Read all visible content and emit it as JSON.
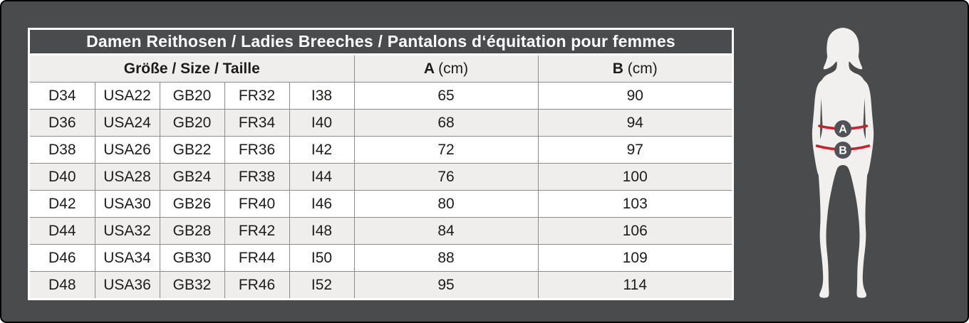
{
  "colors": {
    "page_background": "#4a4b4d",
    "row_alt": "#efeeec",
    "cell_border": "#8c8c8c",
    "accent_red": "#cb2229",
    "silhouette_fill": "#f1f0ee",
    "marker_circle": "#515257",
    "text_dark": "#1c1c1a"
  },
  "chart_data": {
    "type": "table",
    "title": "Damen Reithosen / Ladies Breeches / Pantalons d‘équitation pour femmes",
    "group_header": "Größe / Size / Taille",
    "measure_headers": [
      {
        "label": "A",
        "unit": "(cm)"
      },
      {
        "label": "B",
        "unit": "(cm)"
      }
    ],
    "rows": [
      {
        "sizes": [
          "D34",
          "USA22",
          "GB20",
          "FR32",
          "I38"
        ],
        "a": "65",
        "b": "90"
      },
      {
        "sizes": [
          "D36",
          "USA24",
          "GB20",
          "FR34",
          "I40"
        ],
        "a": "68",
        "b": "94"
      },
      {
        "sizes": [
          "D38",
          "USA26",
          "GB22",
          "FR36",
          "I42"
        ],
        "a": "72",
        "b": "97"
      },
      {
        "sizes": [
          "D40",
          "USA28",
          "GB24",
          "FR38",
          "I44"
        ],
        "a": "76",
        "b": "100"
      },
      {
        "sizes": [
          "D42",
          "USA30",
          "GB26",
          "FR40",
          "I46"
        ],
        "a": "80",
        "b": "103"
      },
      {
        "sizes": [
          "D44",
          "USA32",
          "GB28",
          "FR42",
          "I48"
        ],
        "a": "84",
        "b": "106"
      },
      {
        "sizes": [
          "D46",
          "USA34",
          "GB30",
          "FR44",
          "I50"
        ],
        "a": "88",
        "b": "109"
      },
      {
        "sizes": [
          "D48",
          "USA36",
          "GB32",
          "FR46",
          "I52"
        ],
        "a": "95",
        "b": "114"
      }
    ]
  },
  "figure": {
    "marker_a": "A",
    "marker_b": "B"
  }
}
